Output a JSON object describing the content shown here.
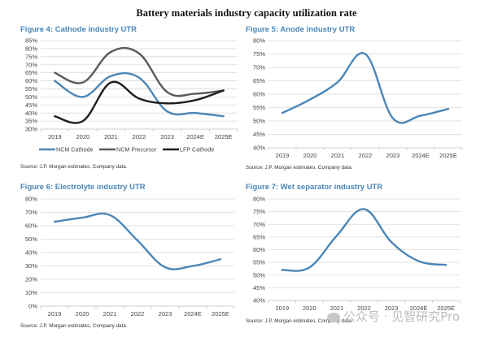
{
  "page": {
    "title": "Battery materials industry capacity utilization rate",
    "watermark": "公众号 · 见智研究Pro",
    "colors": {
      "title_blue": "#4a86b8",
      "line_blue": "#4a86b8",
      "line_gray": "#5a5a5a",
      "line_black": "#1e1e1e",
      "grid": "#d9d9d9"
    }
  },
  "chart_data": [
    {
      "id": "fig4",
      "type": "line",
      "title": "Figure 4: Cathode industry UTR",
      "source": "Source: J.P. Morgan estimates, Company data.",
      "categories": [
        "2019",
        "2020",
        "2021",
        "2022",
        "2023",
        "2024E",
        "2025E"
      ],
      "ylim": [
        0.3,
        0.85
      ],
      "yticks": [
        0.3,
        0.35,
        0.4,
        0.45,
        0.5,
        0.55,
        0.6,
        0.65,
        0.7,
        0.75,
        0.8,
        0.85
      ],
      "ytick_labels": [
        "30%",
        "35%",
        "40%",
        "45%",
        "50%",
        "55%",
        "60%",
        "65%",
        "70%",
        "75%",
        "80%",
        "85%"
      ],
      "grid": true,
      "legend": "bottom",
      "xlabel": "",
      "ylabel": "",
      "series": [
        {
          "name": "NCM Cathode",
          "color": "#4a86b8",
          "values": [
            0.6,
            0.5,
            0.63,
            0.62,
            0.41,
            0.4,
            0.38
          ]
        },
        {
          "name": "NCM Precursor",
          "color": "#5a5a5a",
          "values": [
            0.65,
            0.59,
            0.78,
            0.77,
            0.53,
            0.52,
            0.54
          ]
        },
        {
          "name": "LFP Cathode",
          "color": "#1e1e1e",
          "values": [
            0.38,
            0.35,
            0.59,
            0.49,
            0.46,
            0.48,
            0.54
          ]
        }
      ]
    },
    {
      "id": "fig5",
      "type": "line",
      "title": "Figure 5: Anode industry UTR",
      "source": "Source: J.P. Morgan estimates, Company data.",
      "categories": [
        "2019",
        "2020",
        "2021",
        "2022",
        "2023",
        "2024E",
        "2025E"
      ],
      "ylim": [
        0.4,
        0.8
      ],
      "yticks": [
        0.4,
        0.45,
        0.5,
        0.55,
        0.6,
        0.65,
        0.7,
        0.75,
        0.8
      ],
      "ytick_labels": [
        "40%",
        "45%",
        "50%",
        "55%",
        "60%",
        "65%",
        "70%",
        "75%",
        "80%"
      ],
      "grid": true,
      "legend": "none",
      "xlabel": "",
      "ylabel": "",
      "series": [
        {
          "name": "Anode",
          "color": "#4a86b8",
          "values": [
            0.53,
            0.58,
            0.645,
            0.75,
            0.51,
            0.52,
            0.545
          ]
        }
      ]
    },
    {
      "id": "fig6",
      "type": "line",
      "title": "Figure 6: Electrolyte industry UTR",
      "source": "Source: J.P. Morgan estimates, Company data.",
      "categories": [
        "2019",
        "2020",
        "2021",
        "2022",
        "2023",
        "2024E",
        "2025E"
      ],
      "ylim": [
        0.0,
        0.8
      ],
      "yticks": [
        0.0,
        0.1,
        0.2,
        0.3,
        0.4,
        0.5,
        0.6,
        0.7,
        0.8
      ],
      "ytick_labels": [
        "0%",
        "10%",
        "20%",
        "30%",
        "40%",
        "50%",
        "60%",
        "70%",
        "80%"
      ],
      "grid": true,
      "legend": "none",
      "xlabel": "",
      "ylabel": "",
      "series": [
        {
          "name": "Electrolyte",
          "color": "#4a86b8",
          "values": [
            0.63,
            0.66,
            0.68,
            0.49,
            0.29,
            0.3,
            0.35
          ]
        }
      ]
    },
    {
      "id": "fig7",
      "type": "line",
      "title": "Figure 7: Wet separator industry UTR",
      "source": "Source: J.P. Morgan estimates, Company data.",
      "categories": [
        "2019",
        "2020",
        "2021",
        "2022",
        "2023",
        "2024E",
        "2025E"
      ],
      "ylim": [
        0.4,
        0.8
      ],
      "yticks": [
        0.4,
        0.45,
        0.5,
        0.55,
        0.6,
        0.65,
        0.7,
        0.75,
        0.8
      ],
      "ytick_labels": [
        "40%",
        "45%",
        "50%",
        "55%",
        "60%",
        "65%",
        "70%",
        "75%",
        "80%"
      ],
      "grid": true,
      "legend": "none",
      "xlabel": "",
      "ylabel": "",
      "series": [
        {
          "name": "Wet separator",
          "color": "#4a86b8",
          "values": [
            0.52,
            0.53,
            0.655,
            0.76,
            0.63,
            0.555,
            0.54
          ]
        }
      ]
    }
  ]
}
